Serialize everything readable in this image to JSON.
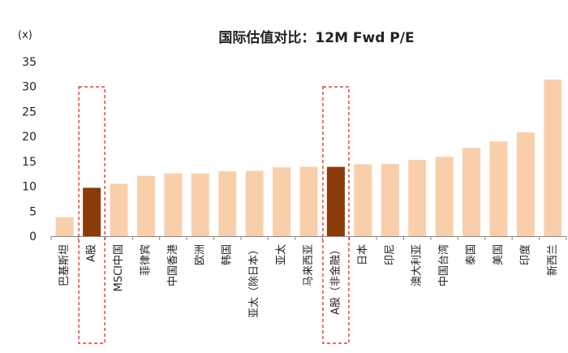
{
  "chart_data": {
    "type": "bar",
    "title": "国际估值对比：12M Fwd P/E",
    "unit_label": "(x)",
    "ylim": [
      0,
      35
    ],
    "yticks": [
      0,
      5,
      10,
      15,
      20,
      25,
      30,
      35
    ],
    "categories": [
      "巴基斯坦",
      "A股",
      "MSCI中国",
      "菲律宾",
      "中国香港",
      "欧洲",
      "韩国",
      "亚太（除日本）",
      "亚太",
      "马来西亚",
      "A股（非金融）",
      "日本",
      "印尼",
      "澳大利亚",
      "中国台湾",
      "泰国",
      "美国",
      "印度",
      "新西兰"
    ],
    "values": [
      3.8,
      9.7,
      10.5,
      12.1,
      12.6,
      12.6,
      13.0,
      13.1,
      13.8,
      13.9,
      13.9,
      14.4,
      14.5,
      15.3,
      15.9,
      17.7,
      19.0,
      20.8,
      31.4
    ],
    "highlighted": [
      "A股",
      "A股（非金融）"
    ],
    "colors": {
      "bar": "#f9cfab",
      "highlight": "#8b3a0a",
      "box": "#e23a3a",
      "axis": "#888888"
    },
    "grid": false,
    "legend": "none"
  }
}
